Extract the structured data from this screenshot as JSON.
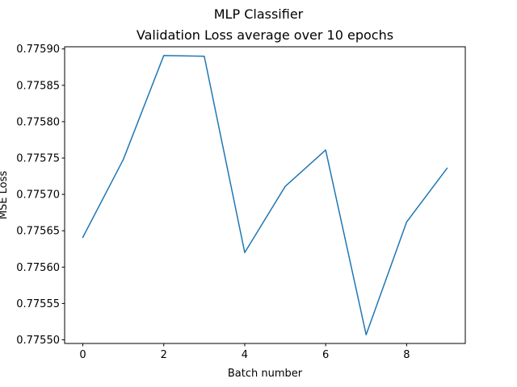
{
  "chart_data": {
    "type": "line",
    "suptitle": "MLP Classifier",
    "title": "Validation Loss average over 10 epochs",
    "xlabel": "Batch number",
    "ylabel": "MSE Loss",
    "x": [
      0,
      1,
      2,
      3,
      4,
      5,
      6,
      7,
      8,
      9
    ],
    "series": [
      {
        "values": [
          0.775641,
          0.775748,
          0.775891,
          0.77589,
          0.77562,
          0.775711,
          0.775761,
          0.775507,
          0.775662,
          0.775736
        ],
        "color": "#1f77b4"
      }
    ],
    "xlim": [
      -0.45,
      9.45
    ],
    "ylim": [
      0.775495,
      0.775903
    ],
    "xticks": [
      0,
      2,
      4,
      6,
      8
    ],
    "xtick_labels": [
      "0",
      "2",
      "4",
      "6",
      "8"
    ],
    "yticks": [
      0.7755,
      0.77555,
      0.7756,
      0.77565,
      0.7757,
      0.77575,
      0.7758,
      0.77585,
      0.7759
    ],
    "ytick_labels": [
      "0.77550",
      "0.77555",
      "0.77560",
      "0.77565",
      "0.77570",
      "0.77575",
      "0.77580",
      "0.77585",
      "0.77590"
    ],
    "grid": false,
    "legend": false
  }
}
